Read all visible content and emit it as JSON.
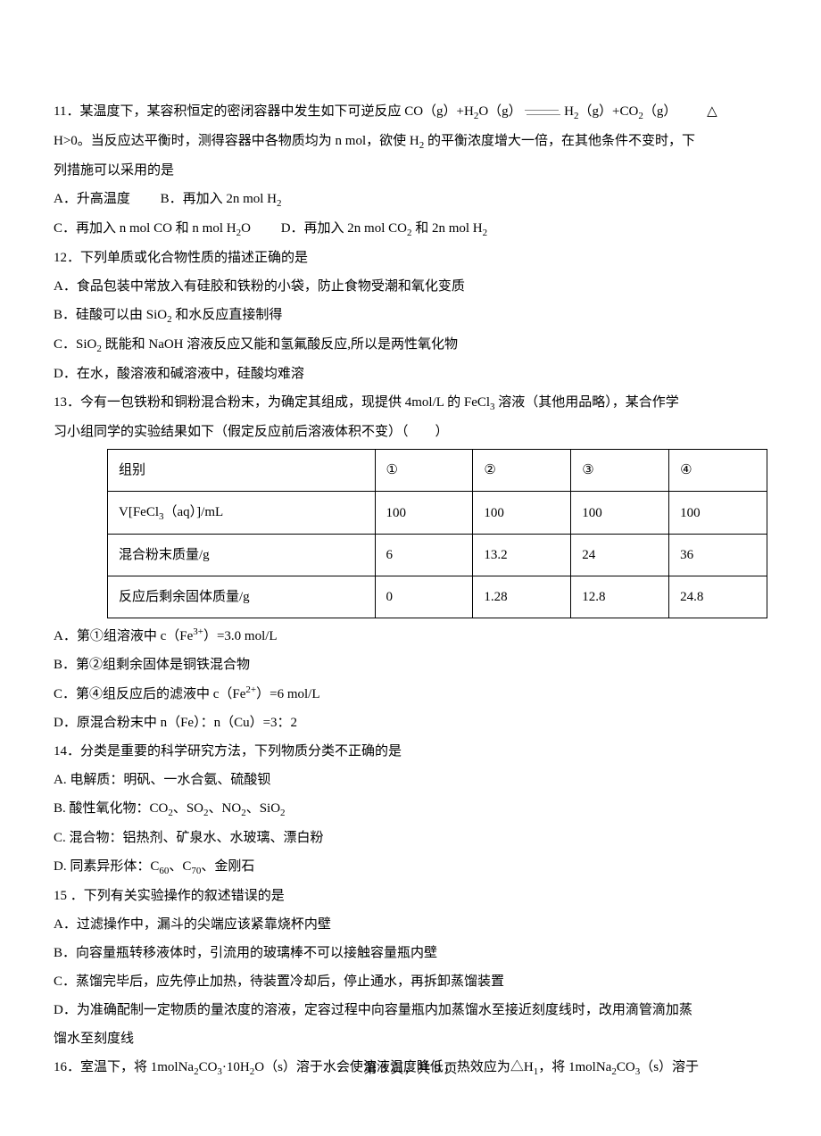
{
  "q11": {
    "stem1_a": "11．某温度下，某容积恒定的密闭容器中发生如下可逆反应 CO（g）+H",
    "stem1_b": "O（g）",
    "stem1_c": "H",
    "stem1_d": "（g）+CO",
    "stem1_e": "（g）",
    "delta": "△",
    "stem2": "H>0。当反应达平衡时，测得容器中各物质均为 n mol，欲使 H",
    "stem2b": " 的平衡浓度增大一倍，在其他条件不变时，下",
    "stem3": "列措施可以采用的是",
    "A": "A．升高温度",
    "B": "B．再加入 2n mol H",
    "C_a": "C．再加入 n mol CO 和 n mol H",
    "C_b": "O",
    "D_a": "D．再加入 2n mol CO",
    "D_b": " 和 2n mol H"
  },
  "q12": {
    "stem": "12．下列单质或化合物性质的描述正确的是",
    "A": "A．食品包装中常放入有硅胶和铁粉的小袋，防止食物受潮和氧化变质",
    "B_a": "B．硅酸可以由 SiO",
    "B_b": " 和水反应直接制得",
    "C_a": "C．SiO",
    "C_b": " 既能和 NaOH 溶液反应又能和氢氟酸反应,所以是两性氧化物",
    "D": "D．在水，酸溶液和碱溶液中，硅酸均难溶"
  },
  "q13": {
    "stem_a": "13．今有一包铁粉和铜粉混合粉末，为确定其组成，现提供 4mol/L 的 FeCl",
    "stem_b": " 溶液（其他用品略），某合作学",
    "stem2": "习小组同学的实验结果如下（假定反应前后溶液体积不变）（　　）",
    "table": {
      "headers": [
        "组别",
        "①",
        "②",
        "③",
        "④"
      ],
      "rows": [
        [
          "V[FeCl₃（aq）]/mL",
          "100",
          "100",
          "100",
          "100"
        ],
        [
          "混合粉末质量/g",
          "6",
          "13.2",
          "24",
          "36"
        ],
        [
          "反应后剩余固体质量/g",
          "0",
          "1.28",
          "12.8",
          "24.8"
        ]
      ]
    },
    "A_a": "A．第①组溶液中 c（Fe",
    "A_b": "）=3.0 mol/L",
    "B": "B．第②组剩余固体是铜铁混合物",
    "C_a": "C．第④组反应后的滤液中 c（Fe",
    "C_b": "）=6 mol/L",
    "D": "D．原混合粉末中 n（Fe）：n（Cu）=3：2"
  },
  "q14": {
    "stem": "14．分类是重要的科学研究方法，下列物质分类不正确的是",
    "A": "A. 电解质：明矾、一水合氨、硫酸钡",
    "B_a": "B. 酸性氧化物：CO",
    "B_b": "、SO",
    "B_c": "、NO",
    "B_d": "、SiO",
    "C": "C. 混合物：铝热剂、矿泉水、水玻璃、漂白粉",
    "D_a": "D. 同素异形体：C",
    "D_b": "、C",
    "D_c": "、金刚石"
  },
  "q15": {
    "stem": "15 ．下列有关实验操作的叙述错误的是",
    "A": "A．过滤操作中，漏斗的尖端应该紧靠烧杯内壁",
    "B": "B．向容量瓶转移液体时，引流用的玻璃棒不可以接触容量瓶内壁",
    "C": "C．蒸馏完毕后，应先停止加热，待装置冷却后，停止通水，再拆卸蒸馏装置",
    "D1": "D．为准确配制一定物质的量浓度的溶液，定容过程中向容量瓶内加蒸馏水至接近刻度线时，改用滴管滴加蒸",
    "D2": "馏水至刻度线"
  },
  "q16": {
    "stem_a": "16．室温下，将 1molNa",
    "stem_b": "CO",
    "stem_c": "·10H",
    "stem_d": "O（s）溶于水会使溶液温度降低，热效应为△H",
    "stem_e": "，将 1molNa",
    "stem_f": "CO",
    "stem_g": "（s）溶于"
  },
  "footer": "第 3 页，共 9 页"
}
